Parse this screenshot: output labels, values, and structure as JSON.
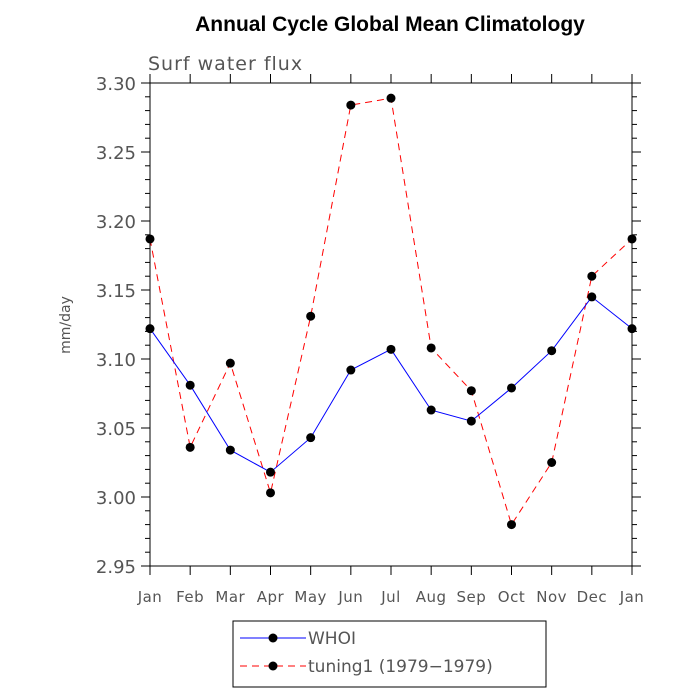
{
  "chart_data": {
    "type": "line",
    "title": "Annual Cycle Global Mean Climatology",
    "subtitle": "Surf water flux",
    "ylabel": "mm/day",
    "xlabel": "",
    "categories": [
      "Jan",
      "Feb",
      "Mar",
      "Apr",
      "May",
      "Jun",
      "Jul",
      "Aug",
      "Sep",
      "Oct",
      "Nov",
      "Dec",
      "Jan"
    ],
    "ylim": [
      2.95,
      3.3
    ],
    "yticks": [
      "2.95",
      "3.00",
      "3.05",
      "3.10",
      "3.15",
      "3.20",
      "3.25",
      "3.30"
    ],
    "grid": false,
    "legend_position": "bottom",
    "series": [
      {
        "name": "WHOI",
        "color": "#0000ff",
        "dash": "solid",
        "values": [
          3.122,
          3.081,
          3.034,
          3.018,
          3.043,
          3.092,
          3.107,
          3.063,
          3.055,
          3.079,
          3.106,
          3.145,
          3.122
        ]
      },
      {
        "name": "tuning1 (1979−1979)",
        "color": "#ff0000",
        "dash": "dashed",
        "values": [
          3.187,
          3.036,
          3.097,
          3.003,
          3.131,
          3.284,
          3.289,
          3.108,
          3.077,
          2.98,
          3.025,
          3.16,
          3.187
        ]
      }
    ]
  }
}
